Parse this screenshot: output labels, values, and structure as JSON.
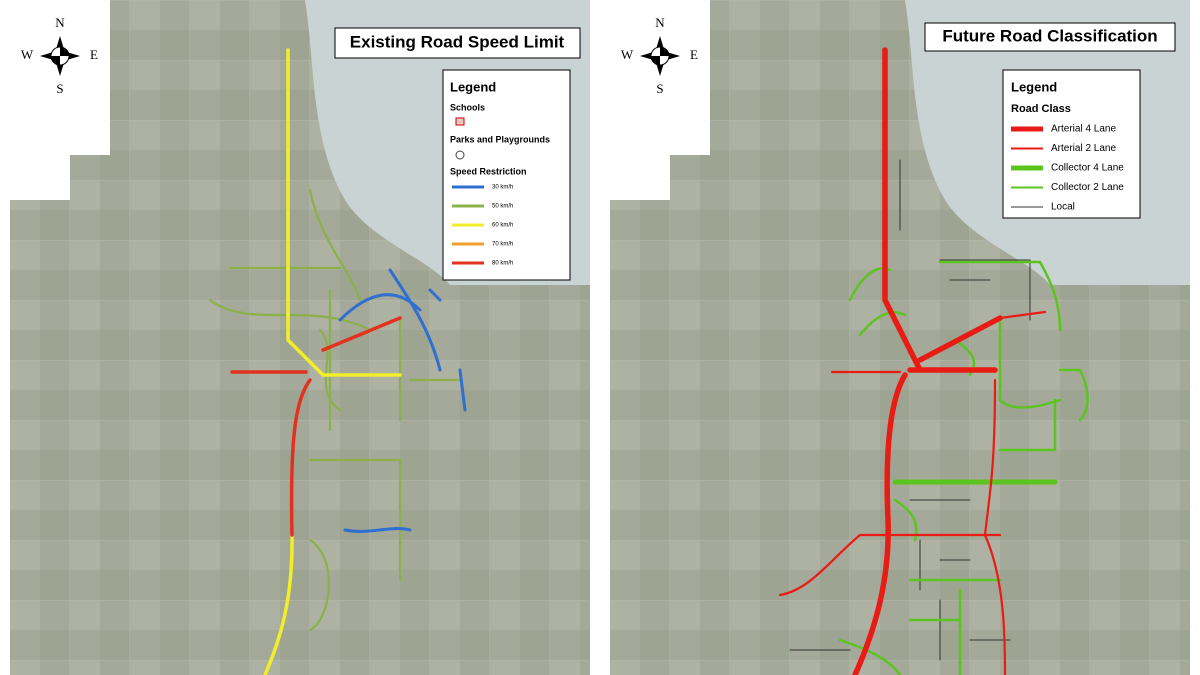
{
  "maps": [
    {
      "title": "Existing Road Speed Limit",
      "compass": {
        "n": "N",
        "e": "E",
        "s": "S",
        "w": "W"
      },
      "legend": {
        "title": "Legend",
        "schools": "Schools",
        "parks": "Parks and Playgrounds",
        "heading": "Speed Restriction",
        "items": [
          {
            "label": "30 km/h",
            "color": "#2f6fd0"
          },
          {
            "label": "50 km/h",
            "color": "#8cb04a"
          },
          {
            "label": "60 km/h",
            "color": "#f2ee2a"
          },
          {
            "label": "70 km/h",
            "color": "#f0a030"
          },
          {
            "label": "80 km/h",
            "color": "#e0321e"
          }
        ]
      }
    },
    {
      "title": "Future Road Classification",
      "compass": {
        "n": "N",
        "e": "E",
        "s": "S",
        "w": "W"
      },
      "legend": {
        "title": "Legend",
        "heading": "Road Class",
        "items": [
          {
            "label": "Arterial 4 Lane",
            "color": "#e81c14"
          },
          {
            "label": "Arterial 2 Lane",
            "color": "#e81c14"
          },
          {
            "label": "Collector 4 Lane",
            "color": "#5cc41e"
          },
          {
            "label": "Collector 2 Lane",
            "color": "#5cc41e"
          },
          {
            "label": "Local",
            "color": "#333333"
          }
        ]
      }
    }
  ]
}
